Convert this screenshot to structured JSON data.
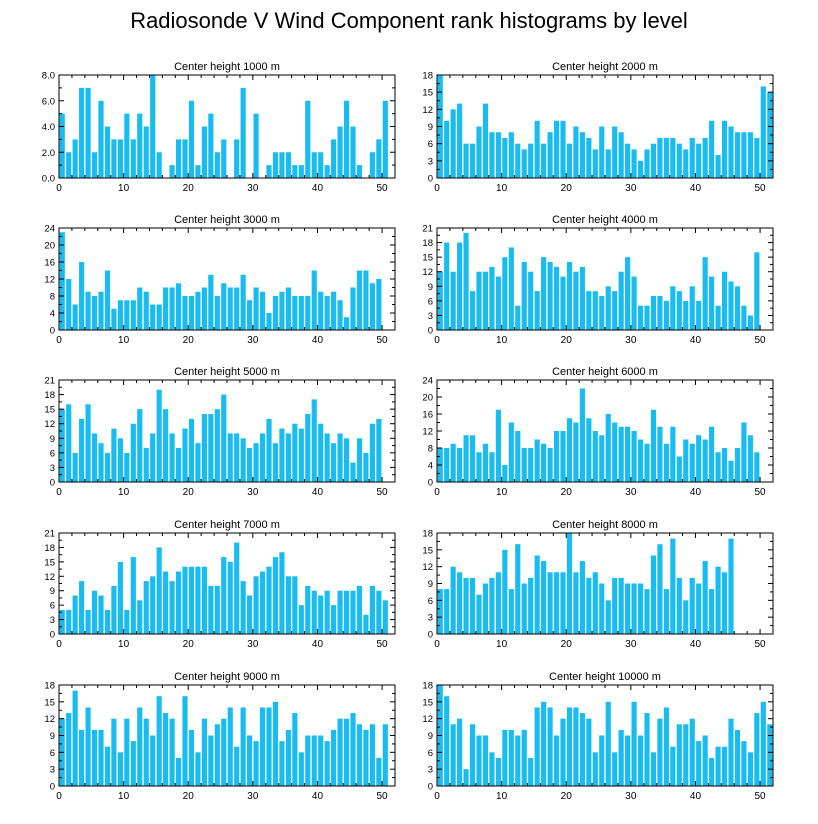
{
  "title": "Radiosonde V Wind Component rank histograms by level",
  "colors": {
    "bar": "#19BCF0",
    "axis": "#000000",
    "background": "#FFFFFF"
  },
  "chart_data": [
    {
      "type": "bar",
      "title": "Center height 1000 m",
      "xlim": [
        0,
        52
      ],
      "ylim": [
        0,
        8
      ],
      "xticks": [
        0,
        10,
        20,
        30,
        40,
        50
      ],
      "yticks": [
        0,
        2,
        4,
        6,
        8
      ],
      "ytick_labels": [
        "0.0",
        "2.0",
        "4.0",
        "6.0",
        "8.0"
      ],
      "values": [
        5,
        2,
        3,
        7,
        7,
        2,
        6,
        4,
        3,
        3,
        5,
        3,
        5,
        4,
        8,
        2,
        0,
        1,
        3,
        3,
        6,
        1,
        4,
        5,
        2,
        3,
        0,
        3,
        7,
        0,
        5,
        0,
        1,
        2,
        2,
        2,
        1,
        1,
        6,
        2,
        2,
        1,
        3,
        4,
        6,
        4,
        1,
        0,
        2,
        3,
        6
      ]
    },
    {
      "type": "bar",
      "title": "Center height 2000 m",
      "xlim": [
        0,
        52
      ],
      "ylim": [
        0,
        18
      ],
      "xticks": [
        0,
        10,
        20,
        30,
        40,
        50
      ],
      "yticks": [
        0,
        3,
        6,
        9,
        12,
        15,
        18
      ],
      "ytick_labels": [
        "0",
        "3",
        "6",
        "9",
        "12",
        "15",
        "18"
      ],
      "values": [
        18,
        10,
        12,
        13,
        6,
        6,
        9,
        13,
        8,
        8,
        7,
        8,
        6,
        5,
        6,
        10,
        6,
        8,
        10,
        10,
        6,
        9,
        8,
        7,
        5,
        9,
        5,
        9,
        8,
        6,
        5,
        3,
        5,
        6,
        7,
        7,
        7,
        6,
        5,
        7,
        6,
        7,
        10,
        4,
        10,
        9,
        8,
        8,
        8,
        7,
        16,
        15
      ]
    },
    {
      "type": "bar",
      "title": "Center height 3000 m",
      "xlim": [
        0,
        52
      ],
      "ylim": [
        0,
        24
      ],
      "xticks": [
        0,
        10,
        20,
        30,
        40,
        50
      ],
      "yticks": [
        0,
        4,
        8,
        12,
        16,
        20,
        24
      ],
      "ytick_labels": [
        "0",
        "4",
        "8",
        "12",
        "16",
        "20",
        "24"
      ],
      "values": [
        23,
        12,
        6,
        16,
        9,
        8,
        9,
        14,
        5,
        7,
        7,
        7,
        10,
        9,
        6,
        6,
        10,
        10,
        11,
        8,
        8,
        9,
        10,
        13,
        8,
        11,
        10,
        10,
        13,
        7,
        10,
        9,
        4,
        8,
        9,
        10,
        8,
        8,
        8,
        14,
        9,
        8,
        9,
        7,
        3,
        10,
        14,
        14,
        11,
        12
      ]
    },
    {
      "type": "bar",
      "title": "Center height 4000 m",
      "xlim": [
        0,
        52
      ],
      "ylim": [
        0,
        21
      ],
      "xticks": [
        0,
        10,
        20,
        30,
        40,
        50
      ],
      "yticks": [
        0,
        3,
        6,
        9,
        12,
        15,
        18,
        21
      ],
      "ytick_labels": [
        "0",
        "3",
        "6",
        "9",
        "12",
        "15",
        "18",
        "21"
      ],
      "values": [
        12,
        18,
        12,
        18,
        20,
        8,
        12,
        12,
        13,
        11,
        15,
        17,
        5,
        14,
        12,
        8,
        15,
        14,
        13,
        11,
        14,
        12,
        13,
        8,
        8,
        7,
        9,
        8,
        12,
        15,
        11,
        5,
        5,
        7,
        7,
        6,
        9,
        8,
        6,
        9,
        6,
        15,
        11,
        5,
        12,
        10,
        9,
        5,
        3,
        16
      ]
    },
    {
      "type": "bar",
      "title": "Center height 5000 m",
      "xlim": [
        0,
        52
      ],
      "ylim": [
        0,
        21
      ],
      "xticks": [
        0,
        10,
        20,
        30,
        40,
        50
      ],
      "yticks": [
        0,
        3,
        6,
        9,
        12,
        15,
        18,
        21
      ],
      "ytick_labels": [
        "0",
        "3",
        "6",
        "9",
        "12",
        "15",
        "18",
        "21"
      ],
      "values": [
        15,
        16,
        6,
        13,
        16,
        10,
        8,
        6,
        11,
        9,
        6,
        12,
        15,
        7,
        10,
        19,
        15,
        10,
        7,
        11,
        13,
        8,
        14,
        14,
        15,
        18,
        10,
        10,
        9,
        7,
        8,
        10,
        13,
        8,
        11,
        10,
        12,
        11,
        14,
        17,
        12,
        10,
        8,
        10,
        9,
        4,
        9,
        6,
        12,
        13
      ]
    },
    {
      "type": "bar",
      "title": "Center height 6000 m",
      "xlim": [
        0,
        52
      ],
      "ylim": [
        0,
        24
      ],
      "xticks": [
        0,
        10,
        20,
        30,
        40,
        50
      ],
      "yticks": [
        0,
        4,
        8,
        12,
        16,
        20,
        24
      ],
      "ytick_labels": [
        "0",
        "4",
        "8",
        "12",
        "16",
        "20",
        "24"
      ],
      "values": [
        8,
        8,
        9,
        8,
        11,
        11,
        7,
        9,
        7,
        17,
        4,
        14,
        12,
        8,
        8,
        10,
        9,
        8,
        12,
        12,
        15,
        14,
        22,
        15,
        12,
        11,
        16,
        14,
        13,
        13,
        12,
        10,
        9,
        17,
        13,
        9,
        13,
        6,
        10,
        9,
        11,
        10,
        13,
        7,
        8,
        5,
        8,
        14,
        11,
        7
      ]
    },
    {
      "type": "bar",
      "title": "Center height 7000 m",
      "xlim": [
        0,
        52
      ],
      "ylim": [
        0,
        21
      ],
      "xticks": [
        0,
        10,
        20,
        30,
        40,
        50
      ],
      "yticks": [
        0,
        3,
        6,
        9,
        12,
        15,
        18,
        21
      ],
      "ytick_labels": [
        "0",
        "3",
        "6",
        "9",
        "12",
        "15",
        "18",
        "21"
      ],
      "values": [
        5,
        5,
        8,
        11,
        5,
        9,
        8,
        5,
        10,
        15,
        5,
        16,
        7,
        11,
        12,
        18,
        13,
        11,
        13,
        14,
        14,
        14,
        14,
        10,
        10,
        16,
        15,
        19,
        11,
        8,
        12,
        13,
        14,
        16,
        17,
        12,
        12,
        6,
        10,
        9,
        8,
        9,
        6,
        9,
        9,
        9,
        10,
        4,
        10,
        9,
        7
      ]
    },
    {
      "type": "bar",
      "title": "Center height 8000 m",
      "xlim": [
        0,
        52
      ],
      "ylim": [
        0,
        18
      ],
      "xticks": [
        0,
        10,
        20,
        30,
        40,
        50
      ],
      "yticks": [
        0,
        3,
        6,
        9,
        12,
        15,
        18
      ],
      "ytick_labels": [
        "0",
        "3",
        "6",
        "9",
        "12",
        "15",
        "18"
      ],
      "values": [
        8,
        8,
        12,
        11,
        10,
        10,
        7,
        9,
        10,
        11,
        15,
        8,
        16,
        9,
        10,
        14,
        13,
        11,
        11,
        11,
        18,
        11,
        13,
        10,
        11,
        9,
        6,
        10,
        10,
        9,
        9,
        9,
        8,
        14,
        16,
        8,
        17,
        10,
        6,
        10,
        9,
        13,
        8,
        12,
        11,
        17
      ]
    },
    {
      "type": "bar",
      "title": "Center height 9000 m",
      "xlim": [
        0,
        52
      ],
      "ylim": [
        0,
        18
      ],
      "xticks": [
        0,
        10,
        20,
        30,
        40,
        50
      ],
      "yticks": [
        0,
        3,
        6,
        9,
        12,
        15,
        18
      ],
      "ytick_labels": [
        "0",
        "3",
        "6",
        "9",
        "12",
        "15",
        "18"
      ],
      "values": [
        12,
        13,
        17,
        10,
        14,
        10,
        10,
        7,
        12,
        6,
        12,
        8,
        14,
        12,
        9,
        16,
        13,
        12,
        5,
        16,
        10,
        6,
        12,
        9,
        11,
        12,
        14,
        7,
        14,
        9,
        8,
        14,
        14,
        15,
        8,
        10,
        13,
        6,
        9,
        9,
        9,
        8,
        10,
        12,
        12,
        13,
        11,
        10,
        11,
        5,
        11
      ]
    },
    {
      "type": "bar",
      "title": "Center height 10000 m",
      "xlim": [
        0,
        52
      ],
      "ylim": [
        0,
        18
      ],
      "xticks": [
        0,
        10,
        20,
        30,
        40,
        50
      ],
      "yticks": [
        0,
        3,
        6,
        9,
        12,
        15,
        18
      ],
      "ytick_labels": [
        "0",
        "3",
        "6",
        "9",
        "12",
        "15",
        "18"
      ],
      "values": [
        18,
        16,
        11,
        12,
        3,
        11,
        9,
        9,
        6,
        5,
        10,
        10,
        9,
        10,
        5,
        14,
        15,
        14,
        9,
        12,
        14,
        14,
        13,
        12,
        6,
        9,
        15,
        6,
        10,
        9,
        15,
        9,
        13,
        6,
        12,
        14,
        7,
        11,
        11,
        12,
        8,
        9,
        5,
        7,
        7,
        12,
        10,
        8,
        6,
        13,
        15,
        11
      ]
    }
  ]
}
